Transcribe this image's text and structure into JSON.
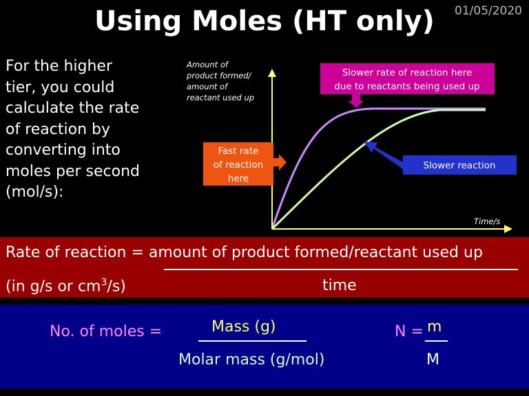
{
  "header": {
    "title": "Using Moles (HT only)",
    "date": "01/05/2020"
  },
  "intro": {
    "lines": [
      "For the higher",
      "tier, you could",
      "calculate the rate",
      "of reaction by",
      "converting into",
      "moles per second",
      "(mol/s):"
    ]
  },
  "graph": {
    "y_axis_label": [
      "Amount of",
      "product formed/",
      "amount of",
      "reactant used up"
    ],
    "x_axis_label": "Time/s",
    "callouts": {
      "slower_rate": [
        "Slower rate of reaction here",
        "due to reactants being used up"
      ],
      "fast_rate": [
        "Fast rate",
        "of reaction",
        "here"
      ],
      "slower_reaction": "Slower reaction"
    }
  },
  "rate": {
    "equation": "Rate of reaction = amount of product formed/reactant used up",
    "units": {
      "before": "(in g/s or cm",
      "sup": "3",
      "after": "/s)"
    },
    "denominator": "time"
  },
  "moles": {
    "label": "No. of moles =",
    "numerator": "Mass (g)",
    "denominator": "Molar mass (g/mol)",
    "short_label": "N =",
    "short_numerator": "m",
    "short_denominator": "M"
  }
}
